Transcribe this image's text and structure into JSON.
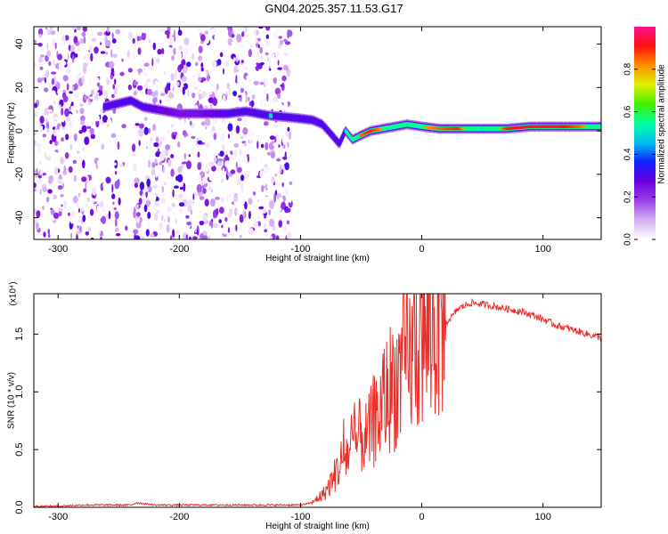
{
  "title": "GN04.2025.357.11.53.G17",
  "chart_data": [
    {
      "type": "heatmap",
      "title": "GN04.2025.357.11.53.G17",
      "xlabel": "Height of straight line (km)",
      "ylabel": "Frequency (Hz)",
      "xlim": [
        -320,
        148
      ],
      "ylim": [
        -50,
        48
      ],
      "xticks": [
        -300,
        -200,
        -100,
        0,
        100
      ],
      "xtick_labels": [
        "-300",
        "-200",
        "-100",
        "0",
        "100"
      ],
      "yticks": [
        -40,
        -20,
        0,
        20,
        40
      ],
      "ytick_labels": [
        "-40",
        "-20",
        "0",
        "20",
        "40"
      ],
      "colorbar": {
        "label": "Normalized spectral amplitude",
        "range": [
          0,
          1
        ],
        "ticks": [
          0.0,
          0.2,
          0.4,
          0.6,
          0.8
        ],
        "tick_labels": [
          "0.0",
          "0.2",
          "0.4",
          "0.6",
          "0.8"
        ],
        "colors": [
          "#ffffff",
          "#d4b0f0",
          "#9a40e8",
          "#6a00e0",
          "#1020ff",
          "#00c0f0",
          "#00ffa0",
          "#40f000",
          "#e0f000",
          "#ff9000",
          "#ff1010",
          "#ff1090"
        ]
      },
      "noise_region_x": [
        -320,
        -108
      ],
      "ridge": {
        "x": [
          -262,
          -240,
          -230,
          -200,
          -185,
          -160,
          -145,
          -125,
          -105,
          -90,
          -82,
          -74,
          -68,
          -63,
          -57,
          -50,
          -42,
          -32,
          -22,
          -12,
          0,
          15,
          30,
          50,
          70,
          90,
          110,
          130,
          148
        ],
        "y": [
          11,
          14,
          11,
          8,
          8,
          8,
          9,
          7,
          6,
          5,
          3,
          -2,
          -6,
          0,
          -4,
          -2,
          0,
          1,
          2,
          3,
          2,
          1,
          1,
          1,
          1,
          2,
          2,
          2,
          2
        ],
        "amplitude": [
          0.35,
          0.45,
          0.3,
          0.25,
          0.25,
          0.3,
          0.35,
          0.5,
          0.45,
          0.4,
          0.4,
          0.4,
          0.35,
          0.5,
          0.7,
          0.85,
          0.9,
          0.8,
          0.75,
          0.7,
          0.8,
          0.85,
          0.9,
          0.5,
          0.9,
          0.95,
          0.95,
          0.85,
          0.7
        ]
      }
    },
    {
      "type": "line",
      "xlabel": "Height of straight line (km)",
      "ylabel": "SNR (10 * v/v)",
      "y_multiplier_label": "(x10⁴)",
      "xlim": [
        -320,
        148
      ],
      "ylim": [
        0,
        1.85
      ],
      "xticks": [
        -300,
        -200,
        -100,
        0,
        100
      ],
      "xtick_labels": [
        "-300",
        "-200",
        "-100",
        "0",
        "100"
      ],
      "yticks": [
        0.0,
        0.5,
        1.0,
        1.5
      ],
      "ytick_labels": [
        "0.0",
        "0.5",
        "1.0",
        "1.5"
      ],
      "color": "#e8302a",
      "series": [
        {
          "name": "SNR",
          "x": [
            -320,
            -300,
            -280,
            -260,
            -240,
            -235,
            -220,
            -200,
            -180,
            -160,
            -140,
            -120,
            -100,
            -90,
            -85,
            -80,
            -75,
            -70,
            -65,
            -60,
            -55,
            -50,
            -45,
            -40,
            -35,
            -30,
            -25,
            -20,
            -15,
            -10,
            -5,
            0,
            5,
            10,
            15,
            20,
            25,
            30,
            40,
            50,
            60,
            70,
            80,
            90,
            100,
            110,
            120,
            130,
            140,
            148
          ],
          "y": [
            0.01,
            0.01,
            0.02,
            0.02,
            0.02,
            0.04,
            0.02,
            0.02,
            0.02,
            0.02,
            0.02,
            0.02,
            0.02,
            0.04,
            0.08,
            0.12,
            0.2,
            0.3,
            0.4,
            0.45,
            0.5,
            0.6,
            0.55,
            0.7,
            0.75,
            0.9,
            1.0,
            1.05,
            1.15,
            1.2,
            1.3,
            1.35,
            1.4,
            1.5,
            1.55,
            1.6,
            1.65,
            1.72,
            1.77,
            1.76,
            1.74,
            1.72,
            1.7,
            1.67,
            1.63,
            1.58,
            1.55,
            1.52,
            1.49,
            1.47
          ]
        }
      ]
    }
  ]
}
